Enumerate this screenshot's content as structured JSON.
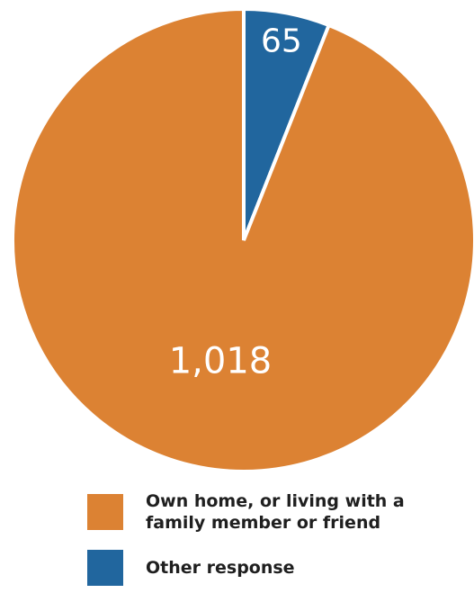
{
  "chart_data": {
    "type": "pie",
    "slices": [
      {
        "label": "Other response",
        "value": 65,
        "display": "65",
        "color": "#21669e"
      },
      {
        "label": "Own home, or living with a family member or friend",
        "value": 1018,
        "display": "1,018",
        "color": "#dc8233"
      }
    ],
    "start": "12 o'clock",
    "direction": "clockwise",
    "legend_position": "bottom"
  },
  "legend": [
    {
      "label": "Own home, or living with a family member or friend",
      "color": "#dc8233"
    },
    {
      "label": "Other response",
      "color": "#21669e"
    }
  ]
}
